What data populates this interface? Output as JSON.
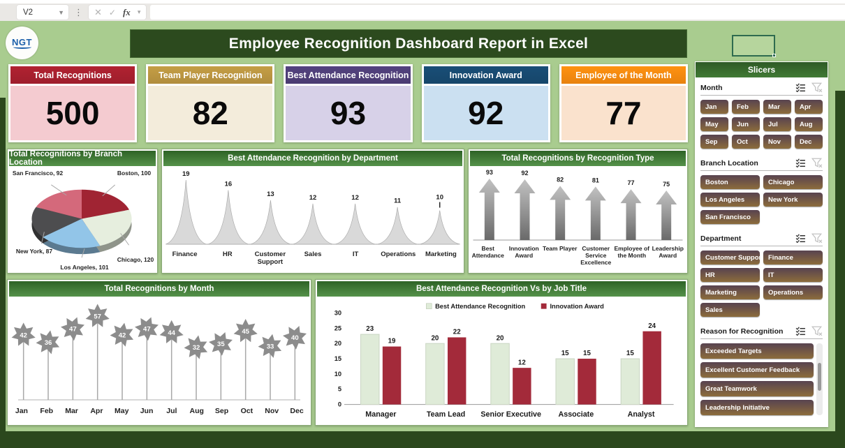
{
  "excel_bar": {
    "name_box": "V2",
    "fx": "fx"
  },
  "header": {
    "title": "Employee Recognition Dashboard Report in Excel",
    "logo": "NGT"
  },
  "kpi_cards": [
    {
      "label": "Total Recognitions",
      "value": "500",
      "header_color": "#9E1E2C",
      "body_color": "#F4CBD0"
    },
    {
      "label": "Team Player Recognition",
      "value": "82",
      "header_color": "#B08D3E",
      "body_color": "#F3ECDB"
    },
    {
      "label": "Best Attendance  Recognition",
      "value": "93",
      "header_color": "#4A3B71",
      "body_color": "#D7D1E8"
    },
    {
      "label": "Innovation Award",
      "value": "92",
      "header_color": "#16466A",
      "body_color": "#CBE0F1"
    },
    {
      "label": "Employee of the Month",
      "value": "77",
      "header_color": "#E8820E",
      "body_color": "#FAE2CD"
    }
  ],
  "chart_data": [
    {
      "type": "pie",
      "title": "Total Recognitions by Branch Location",
      "labels": [
        "Boston",
        "Chicago",
        "Los Angeles",
        "New York",
        "San Francisco"
      ],
      "values": [
        100,
        120,
        101,
        87,
        92
      ],
      "colors": [
        "#A02433",
        "#E6EEDE",
        "#92C5E8",
        "#4D4D4F",
        "#D4697B"
      ],
      "data_labels": [
        "Boston, 100",
        "Chicago, 120",
        "Los Angeles, 101",
        "New York, 87",
        "San Francisco, 92"
      ]
    },
    {
      "type": "area-spike",
      "title": "Best Attendance Recognition by Department",
      "categories": [
        "Finance",
        "HR",
        "Customer Support",
        "Sales",
        "IT",
        "Operations",
        "Marketing"
      ],
      "values": [
        19,
        16,
        13,
        12,
        12,
        11,
        10
      ],
      "color": "#D9D9D9"
    },
    {
      "type": "arrow-bar",
      "title": "Total Recognitions by Recognition Type",
      "categories": [
        "Best Attendance",
        "Innovation Award",
        "Team Player",
        "Customer Service Excellence",
        "Employee of the Month",
        "Leadership Award"
      ],
      "values": [
        93,
        92,
        82,
        81,
        77,
        75
      ],
      "color_top": "#C2C2C2",
      "color_bottom": "#6A6A6A"
    },
    {
      "type": "star-lollipop",
      "title": "Total Recognitions by Month",
      "categories": [
        "Jan",
        "Feb",
        "Mar",
        "Apr",
        "May",
        "Jun",
        "Jul",
        "Aug",
        "Sep",
        "Oct",
        "Nov",
        "Dec"
      ],
      "values": [
        42,
        36,
        47,
        57,
        42,
        47,
        44,
        32,
        35,
        45,
        33,
        40
      ],
      "color": "#8C8C8C"
    },
    {
      "type": "bar",
      "title": "Best Attendance Recognition Vs  by Job Title",
      "categories": [
        "Manager",
        "Team Lead",
        "Senior Executive",
        "Associate",
        "Analyst"
      ],
      "series": [
        {
          "name": "Best Attendance  Recognition",
          "color": "#DFEBD8",
          "values": [
            23,
            20,
            20,
            15,
            15
          ]
        },
        {
          "name": "Innovation Award",
          "color": "#A32A3A",
          "values": [
            19,
            22,
            12,
            15,
            24
          ]
        }
      ],
      "ylim": [
        0,
        30
      ],
      "yticks": [
        0,
        5,
        10,
        15,
        20,
        25,
        30
      ],
      "legend_position": "top"
    }
  ],
  "slicers": {
    "title": "Slicers",
    "button_color_top": "#584350",
    "button_color_bottom": "#8C6C3C",
    "groups": [
      {
        "label": "Month",
        "columns": 4,
        "items": [
          "Jan",
          "Feb",
          "Mar",
          "Apr",
          "May",
          "Jun",
          "Jul",
          "Aug",
          "Sep",
          "Oct",
          "Nov",
          "Dec"
        ]
      },
      {
        "label": "Branch Location",
        "columns": 2,
        "items": [
          "Boston",
          "Chicago",
          "Los Angeles",
          "New York",
          "San Francisco"
        ]
      },
      {
        "label": "Department",
        "columns": 2,
        "items": [
          "Customer Support",
          "Finance",
          "HR",
          "IT",
          "Marketing",
          "Operations",
          "Sales"
        ]
      },
      {
        "label": "Reason for Recognition",
        "columns": 1,
        "has_scrollbar": true,
        "items": [
          "Exceeded Targets",
          "Excellent Customer Feedback",
          "Great Teamwork",
          "Leadership Initiative"
        ]
      }
    ]
  },
  "colors": {
    "dashboard_bg": "#A9CC8F",
    "frame_dark_green": "#2B481D",
    "panel_header_top": "#2E6326",
    "panel_header_bottom": "#55924A",
    "banner_green": "#2C4A1E"
  }
}
